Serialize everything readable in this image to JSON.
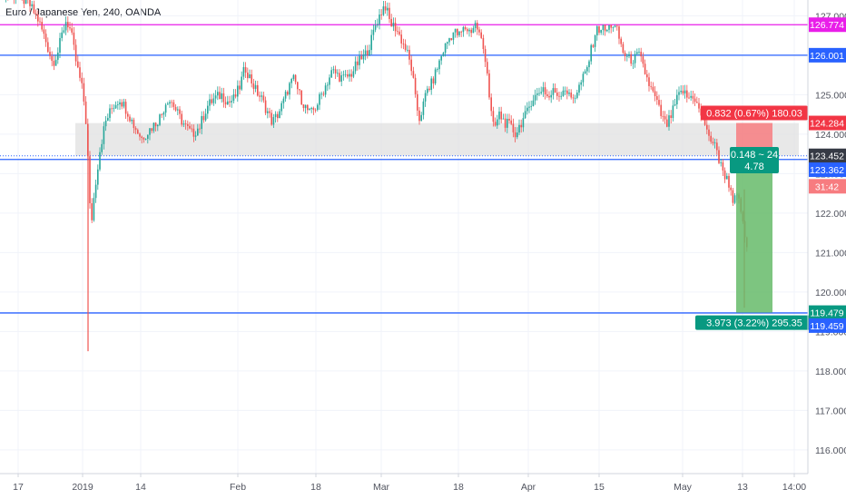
{
  "chart_data": {
    "type": "candlestick",
    "title": "Euro / Japanese Yen, 240, OANDA",
    "ylim": [
      115.4,
      127.4
    ],
    "x_range": [
      0,
      880
    ],
    "x_ticks": [
      {
        "label": "17",
        "x": 20
      },
      {
        "label": "2019",
        "x": 91
      },
      {
        "label": "14",
        "x": 155
      },
      {
        "label": "Feb",
        "x": 262
      },
      {
        "label": "18",
        "x": 348
      },
      {
        "label": "Mar",
        "x": 420
      },
      {
        "label": "18",
        "x": 505
      },
      {
        "label": "Apr",
        "x": 582
      },
      {
        "label": "15",
        "x": 660
      },
      {
        "label": "May",
        "x": 752
      },
      {
        "label": "13",
        "x": 818
      },
      {
        "label": "14:00",
        "x": 875
      }
    ],
    "y_ticks": [
      "127.000",
      "126.000",
      "125.000",
      "124.000",
      "123.000",
      "122.000",
      "121.000",
      "120.000",
      "119.000",
      "118.000",
      "117.000",
      "116.000"
    ],
    "y_tick_values": [
      127,
      126,
      125,
      124,
      123,
      122,
      121,
      120,
      119,
      118,
      117,
      116
    ],
    "bull_color": "#26a69a",
    "bear_color": "#ef5350",
    "hlines": [
      {
        "value": 126.774,
        "color": "#e91ee9",
        "label": "126.774"
      },
      {
        "value": 126.001,
        "color": "#2962ff",
        "label": "126.001"
      },
      {
        "value": 123.36,
        "color": "#2962ff",
        "label": "123.362"
      },
      {
        "value": 119.47,
        "color": "#2962ff",
        "label": "119.459"
      }
    ],
    "zone": {
      "x_from": 83,
      "x_to": 880,
      "y_from": 123.45,
      "y_to": 124.28,
      "color": "#e0e0e0"
    },
    "position": {
      "x_from": 811,
      "x_to": 851,
      "entry": 123.4,
      "stop": 124.284,
      "target": 119.479,
      "stop_label": "0.832 (0.67%) 180.03",
      "target_label": "3.973 (3.22%) 295.35",
      "mid_label_1": "0.148 ~ 24",
      "mid_label_2": "4.78",
      "stop_color": "#f77c80",
      "target_color": "#66bb6a"
    },
    "price_tags": [
      {
        "value": 126.774,
        "label": "126.774",
        "bg": "#e91ee9",
        "fg": "#ffffff"
      },
      {
        "value": 126.001,
        "label": "126.001",
        "bg": "#2962ff",
        "fg": "#ffffff"
      },
      {
        "value": 124.284,
        "label": "124.284",
        "bg": "#f23645",
        "fg": "#ffffff"
      },
      {
        "value": 123.452,
        "label": "123.452",
        "bg": "#363a45",
        "fg": "#ffffff"
      },
      {
        "value": 123.1,
        "label": "123.362",
        "bg": "#2962ff",
        "fg": "#ffffff"
      },
      {
        "value": 122.68,
        "label": "31:42",
        "bg": "#f77c80",
        "fg": "#ffffff"
      },
      {
        "value": 119.479,
        "label": "119.479",
        "bg": "#089981",
        "fg": "#ffffff"
      },
      {
        "value": 119.15,
        "label": "119.459",
        "bg": "#2962ff",
        "fg": "#ffffff"
      }
    ],
    "price_path": [
      [
        0,
        127.6
      ],
      [
        20,
        127.5
      ],
      [
        32,
        127.3
      ],
      [
        42,
        126.9
      ],
      [
        50,
        126.4
      ],
      [
        58,
        125.8
      ],
      [
        64,
        126.1
      ],
      [
        68,
        126.5
      ],
      [
        73,
        126.9
      ],
      [
        78,
        126.6
      ],
      [
        84,
        125.8
      ],
      [
        90,
        125.2
      ],
      [
        94,
        124.6
      ],
      [
        97,
        123.3
      ],
      [
        100,
        121.6
      ],
      [
        103,
        122.3
      ],
      [
        106,
        122.9
      ],
      [
        110,
        123.6
      ],
      [
        116,
        124.3
      ],
      [
        124,
        124.7
      ],
      [
        132,
        124.9
      ],
      [
        140,
        124.6
      ],
      [
        148,
        124.2
      ],
      [
        156,
        123.9
      ],
      [
        164,
        124.1
      ],
      [
        172,
        124.3
      ],
      [
        178,
        124.5
      ],
      [
        184,
        124.9
      ],
      [
        190,
        124.8
      ],
      [
        196,
        124.5
      ],
      [
        204,
        124.2
      ],
      [
        212,
        124.0
      ],
      [
        220,
        124.2
      ],
      [
        228,
        124.7
      ],
      [
        236,
        124.9
      ],
      [
        244,
        125.0
      ],
      [
        252,
        124.8
      ],
      [
        258,
        124.9
      ],
      [
        264,
        125.2
      ],
      [
        270,
        125.7
      ],
      [
        276,
        125.4
      ],
      [
        282,
        125.1
      ],
      [
        288,
        124.9
      ],
      [
        294,
        124.6
      ],
      [
        300,
        124.3
      ],
      [
        306,
        124.5
      ],
      [
        312,
        124.8
      ],
      [
        318,
        125.2
      ],
      [
        324,
        125.4
      ],
      [
        330,
        125.0
      ],
      [
        336,
        124.7
      ],
      [
        342,
        124.5
      ],
      [
        348,
        124.7
      ],
      [
        354,
        125.0
      ],
      [
        360,
        125.3
      ],
      [
        366,
        125.6
      ],
      [
        372,
        125.5
      ],
      [
        378,
        125.4
      ],
      [
        386,
        125.5
      ],
      [
        394,
        125.8
      ],
      [
        402,
        126.0
      ],
      [
        408,
        126.3
      ],
      [
        414,
        126.8
      ],
      [
        420,
        127.1
      ],
      [
        424,
        127.3
      ],
      [
        430,
        126.8
      ],
      [
        436,
        126.7
      ],
      [
        442,
        126.4
      ],
      [
        448,
        126.1
      ],
      [
        454,
        125.6
      ],
      [
        458,
        124.8
      ],
      [
        462,
        124.4
      ],
      [
        466,
        124.7
      ],
      [
        470,
        125.1
      ],
      [
        476,
        125.3
      ],
      [
        482,
        125.7
      ],
      [
        488,
        126.1
      ],
      [
        494,
        126.4
      ],
      [
        500,
        126.6
      ],
      [
        506,
        126.5
      ],
      [
        512,
        126.7
      ],
      [
        518,
        126.6
      ],
      [
        524,
        126.8
      ],
      [
        530,
        126.4
      ],
      [
        536,
        125.8
      ],
      [
        540,
        124.7
      ],
      [
        544,
        124.1
      ],
      [
        550,
        124.5
      ],
      [
        556,
        124.3
      ],
      [
        562,
        124.2
      ],
      [
        568,
        124.0
      ],
      [
        574,
        124.3
      ],
      [
        580,
        124.5
      ],
      [
        586,
        124.9
      ],
      [
        592,
        125.0
      ],
      [
        598,
        125.2
      ],
      [
        604,
        124.9
      ],
      [
        610,
        125.1
      ],
      [
        616,
        125.0
      ],
      [
        622,
        125.2
      ],
      [
        628,
        124.9
      ],
      [
        634,
        125.0
      ],
      [
        640,
        125.3
      ],
      [
        646,
        125.6
      ],
      [
        652,
        126.2
      ],
      [
        656,
        126.6
      ],
      [
        662,
        126.7
      ],
      [
        668,
        126.6
      ],
      [
        674,
        126.8
      ],
      [
        680,
        126.6
      ],
      [
        686,
        126.1
      ],
      [
        692,
        125.9
      ],
      [
        698,
        125.9
      ],
      [
        704,
        126.0
      ],
      [
        710,
        125.6
      ],
      [
        716,
        125.2
      ],
      [
        722,
        124.9
      ],
      [
        728,
        124.5
      ],
      [
        734,
        124.2
      ],
      [
        740,
        124.5
      ],
      [
        746,
        124.9
      ],
      [
        752,
        125.1
      ],
      [
        758,
        124.9
      ],
      [
        764,
        125.0
      ],
      [
        770,
        124.6
      ],
      [
        776,
        124.3
      ],
      [
        780,
        124.1
      ],
      [
        784,
        123.6
      ],
      [
        788,
        123.9
      ],
      [
        792,
        123.3
      ],
      [
        796,
        123.1
      ],
      [
        800,
        122.9
      ],
      [
        804,
        122.7
      ],
      [
        808,
        122.3
      ],
      [
        812,
        122.4
      ],
      [
        816,
        122.1
      ],
      [
        820,
        121.4
      ],
      [
        824,
        121.1
      ]
    ],
    "spikes": [
      {
        "x": 97,
        "high": 124.1,
        "low": 118.5
      },
      {
        "x": 820,
        "high": 122.6,
        "low": 119.6
      }
    ]
  }
}
